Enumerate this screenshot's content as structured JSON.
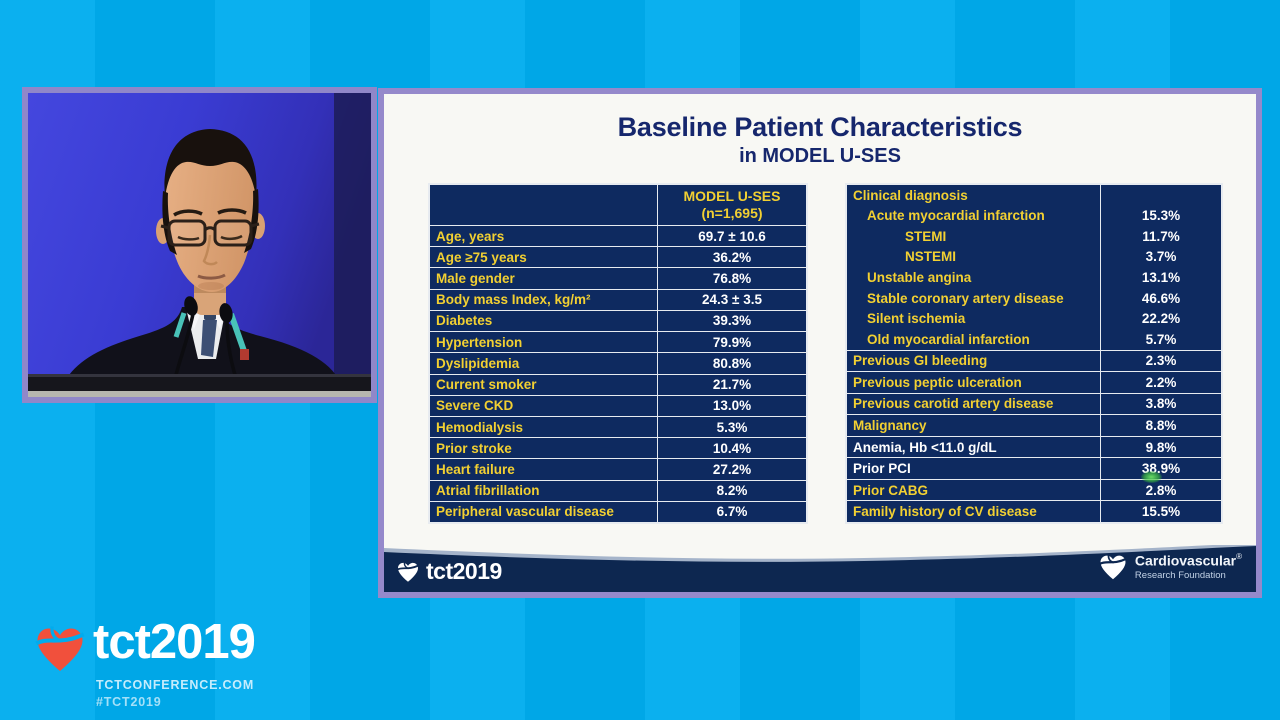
{
  "slide": {
    "title": "Baseline Patient Characteristics",
    "subtitle": "in MODEL U-SES",
    "left_table": {
      "col_header_line1": "MODEL U-SES",
      "col_header_line2": "(n=1,695)",
      "rows": [
        {
          "label": "Age, years",
          "value": "69.7 ± 10.6"
        },
        {
          "label": "Age ≥75 years",
          "value": "36.2%"
        },
        {
          "label": "Male gender",
          "value": "76.8%"
        },
        {
          "label": "Body mass Index, kg/m²",
          "value": "24.3 ± 3.5"
        },
        {
          "label": "Diabetes",
          "value": "39.3%"
        },
        {
          "label": "Hypertension",
          "value": "79.9%"
        },
        {
          "label": "Dyslipidemia",
          "value": "80.8%"
        },
        {
          "label": "Current smoker",
          "value": "21.7%"
        },
        {
          "label": "Severe CKD",
          "value": "13.0%"
        },
        {
          "label": "Hemodialysis",
          "value": "5.3%"
        },
        {
          "label": "Prior stroke",
          "value": "10.4%"
        },
        {
          "label": "Heart failure",
          "value": "27.2%"
        },
        {
          "label": "Atrial fibrillation",
          "value": "8.2%"
        },
        {
          "label": "Peripheral vascular disease",
          "value": "6.7%"
        }
      ]
    },
    "right_table": {
      "group_header": "Clinical diagnosis",
      "group_rows": [
        {
          "label": "Acute myocardial infarction",
          "value": "15.3%",
          "indent": 1
        },
        {
          "label": "STEMI",
          "value": "11.7%",
          "indent": 2
        },
        {
          "label": "NSTEMI",
          "value": "3.7%",
          "indent": 2
        },
        {
          "label": "Unstable angina",
          "value": "13.1%",
          "indent": 1
        },
        {
          "label": "Stable coronary artery disease",
          "value": "46.6%",
          "indent": 1
        },
        {
          "label": "Silent ischemia",
          "value": "22.2%",
          "indent": 1
        },
        {
          "label": "Old myocardial infarction",
          "value": "5.7%",
          "indent": 1
        }
      ],
      "rows": [
        {
          "label": "Previous GI bleeding",
          "value": "2.3%"
        },
        {
          "label": "Previous peptic ulceration",
          "value": "2.2%"
        },
        {
          "label": "Previous carotid artery disease",
          "value": "3.8%"
        },
        {
          "label": "Malignancy",
          "value": "8.8%"
        },
        {
          "label": "Anemia, Hb <11.0 g/dL",
          "value": "9.8%",
          "white_label": true
        },
        {
          "label": "Prior PCI",
          "value": "38.9%",
          "white_label": true
        },
        {
          "label": "Prior CABG",
          "value": "2.8%"
        },
        {
          "label": "Family history of CV disease",
          "value": "15.5%"
        }
      ]
    },
    "footer": {
      "conference_logo_text": "tct2019",
      "crf_name": "Cardiovascular",
      "crf_reg": "®",
      "crf_sub": "Research Foundation"
    }
  },
  "overlay": {
    "event_logo_text": "tct2019",
    "event_logo_url": "TCTCONFERENCE.COM",
    "event_logo_hashtag": "#TCT2019"
  },
  "colors": {
    "background_cyan": "#00acee",
    "frame_purple": "#9087c9",
    "table_navy": "#0e2a60",
    "title_navy": "#16276d",
    "label_yellow": "#f2d032",
    "value_white": "#ffffff",
    "footer_navy": "#0d2750",
    "laser_green": "#3cbe3c",
    "heart_red": "#f1503c"
  }
}
